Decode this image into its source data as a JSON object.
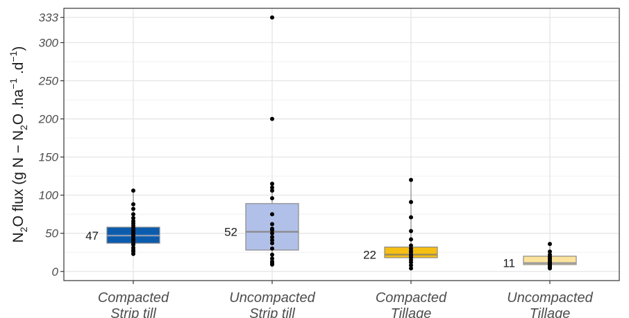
{
  "chart_data": {
    "type": "box",
    "ylabel": {
      "parts": [
        "N",
        "2",
        "O flux (g N − N",
        "2",
        "O .ha",
        "−1",
        " .d",
        "−1",
        ")"
      ]
    },
    "yticks": [
      0,
      50,
      100,
      150,
      200,
      250,
      300,
      333
    ],
    "ylim": [
      -12,
      345
    ],
    "grid": true,
    "categories": [
      {
        "line1": "Compacted",
        "line2": "Strip till"
      },
      {
        "line1": "Uncompacted",
        "line2": "Strip till"
      },
      {
        "line1": "Compacted",
        "line2": "Tillage"
      },
      {
        "line1": "Uncompacted",
        "line2": "Tillage"
      }
    ],
    "boxes": [
      {
        "q1": 37,
        "median": 47,
        "q3": 58,
        "whisker_low": 23,
        "whisker_high": 106,
        "median_label": "47",
        "fill": "#0b5cad",
        "median_color": "#8c9ab3",
        "points": [
          106,
          88,
          82,
          75,
          70,
          66,
          63,
          60,
          57,
          55,
          53,
          51,
          49,
          47,
          45,
          42,
          40,
          37,
          35,
          31,
          28,
          26,
          23
        ]
      },
      {
        "q1": 28,
        "median": 52,
        "q3": 89,
        "whisker_low": 9,
        "whisker_high": 115,
        "median_label": "52",
        "fill": "#b1c0e8",
        "median_color": "#8a8a8a",
        "points": [
          333,
          200,
          115,
          110,
          106,
          96,
          75,
          62,
          56,
          54,
          50,
          45,
          41,
          37,
          30,
          22,
          17,
          13,
          11,
          9
        ]
      },
      {
        "q1": 18,
        "median": 22,
        "q3": 32,
        "whisker_low": 4,
        "whisker_high": 120,
        "median_label": "22",
        "fill": "#f6bf13",
        "median_color": "#9a8a5a",
        "points": [
          120,
          91,
          71,
          53,
          42,
          34,
          30,
          27,
          25,
          22,
          20,
          18,
          15,
          12,
          8,
          4
        ]
      },
      {
        "q1": 9,
        "median": 11,
        "q3": 20,
        "whisker_low": 4,
        "whisker_high": 36,
        "median_label": "11",
        "fill": "#fde49c",
        "median_color": "#9a9a9a",
        "points": [
          36,
          26,
          22,
          19,
          17,
          15,
          13,
          12,
          11,
          10,
          9,
          8,
          7,
          6,
          5,
          4
        ]
      }
    ]
  }
}
